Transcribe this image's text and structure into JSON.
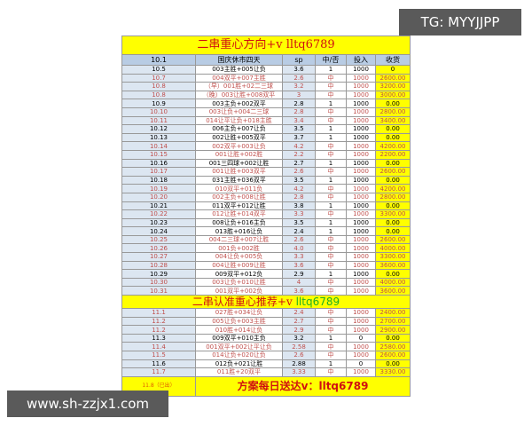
{
  "watermarks": {
    "top": "TG: MYYJJPP",
    "bottom": "www.sh-zzjx1.com"
  },
  "section1": {
    "title": "二串重心方向+v",
    "title_id": "lltq6789",
    "header": [
      "10.1",
      "国庆休市四天",
      "sp",
      "中/否",
      "投入",
      "收货"
    ],
    "rows": [
      [
        "10.5",
        "003主胜+005让负",
        "3.6",
        "1",
        "1000",
        "0",
        false
      ],
      [
        "10.7",
        "004双平+007主胜",
        "2.6",
        "中",
        "1000",
        "2600.00",
        true
      ],
      [
        "10.8",
        "（早）001胜+02二三球",
        "3.2",
        "中",
        "1000",
        "3200.00",
        true
      ],
      [
        "10.8",
        "（晚）003让胜+008双平",
        "3",
        "中",
        "1000",
        "3000.00",
        true
      ],
      [
        "10.9",
        "003主负+002双平",
        "2.8",
        "1",
        "1000",
        "0.00",
        false
      ],
      [
        "10.10",
        "003让负+004二三球",
        "2.8",
        "中",
        "1000",
        "2800.00",
        true
      ],
      [
        "10.11",
        "014让平让负+018主胜",
        "3.4",
        "中",
        "1000",
        "3400.00",
        true
      ],
      [
        "10.12",
        "006主负+007让负",
        "3.5",
        "1",
        "1000",
        "0.00",
        false
      ],
      [
        "10.13",
        "002让胜+005双平",
        "3.7",
        "1",
        "1000",
        "0.00",
        false
      ],
      [
        "10.14",
        "002双平+003让负",
        "4.2",
        "中",
        "1000",
        "4200.00",
        true
      ],
      [
        "10.15",
        "001让胜+002胜",
        "2.2",
        "中",
        "1000",
        "2200.00",
        true
      ],
      [
        "10.16",
        "001三四球+002让胜",
        "2.7",
        "1",
        "1000",
        "0.00",
        false
      ],
      [
        "10.17",
        "001让胜+003双平",
        "2.6",
        "中",
        "1000",
        "2600.00",
        true
      ],
      [
        "10.18",
        "031主胜+036双平",
        "3.5",
        "1",
        "1000",
        "0.00",
        false
      ],
      [
        "10.19",
        "010双平+011负",
        "4.2",
        "中",
        "1000",
        "4200.00",
        true
      ],
      [
        "10.20",
        "002主负+008让胜",
        "2.8",
        "中",
        "1000",
        "2800.00",
        true
      ],
      [
        "10.21",
        "011双平+012让胜",
        "3.8",
        "1",
        "1000",
        "0.00",
        false
      ],
      [
        "10.22",
        "012让胜+014双平",
        "3.3",
        "中",
        "1000",
        "3300.00",
        true
      ],
      [
        "10.23",
        "008让负+016主负",
        "3.5",
        "1",
        "1000",
        "0.00",
        false
      ],
      [
        "10.24",
        "013胜+016让负",
        "2.4",
        "1",
        "1000",
        "0.00",
        false
      ],
      [
        "10.25",
        "004二三球+007让胜",
        "2.6",
        "中",
        "1000",
        "2600.00",
        true
      ],
      [
        "10.26",
        "001负+002胜",
        "4.0",
        "中",
        "1000",
        "4000.00",
        true
      ],
      [
        "10.27",
        "004让负+005负",
        "3.3",
        "中",
        "1000",
        "3300.00",
        true
      ],
      [
        "10.28",
        "004让胜+009让胜",
        "3.6",
        "中",
        "1000",
        "3600.00",
        true
      ],
      [
        "10.29",
        "009双平+012负",
        "2.9",
        "1",
        "1000",
        "0.00",
        false
      ],
      [
        "10.30",
        "003让负+010让胜",
        "4",
        "中",
        "1000",
        "4000.00",
        true
      ],
      [
        "10.31",
        "001双平+002负",
        "3.6",
        "中",
        "1000",
        "3600.00",
        true
      ]
    ]
  },
  "section2": {
    "title": "二串认准重心推荐+v",
    "title_id": "lltq6789",
    "rows": [
      [
        "11.1",
        "027胜+034让负",
        "2.4",
        "中",
        "1000",
        "2400.00",
        true
      ],
      [
        "11.2",
        "005让负+003主胜",
        "2.7",
        "中",
        "1000",
        "2700.00",
        true
      ],
      [
        "11.2",
        "010胜+014让负",
        "2.9",
        "中",
        "1000",
        "2900.00",
        true
      ],
      [
        "11.3",
        "009双平+010主负",
        "3.2",
        "1",
        "0",
        "0.00",
        false
      ],
      [
        "11.4",
        "001双平+002让平让负",
        "2.58",
        "中",
        "1000",
        "2580.00",
        true
      ],
      [
        "11.5",
        "014让负+020让负",
        "2.6",
        "中",
        "1000",
        "2600.00",
        true
      ],
      [
        "11.6",
        "012负+021让胜",
        "2.88",
        "1",
        "0",
        "0.00",
        false
      ],
      [
        "11.7",
        "011胜+20双平",
        "3.33",
        "中",
        "1000",
        "3330.00",
        true
      ]
    ]
  },
  "footer": {
    "note": "11.8（已出）",
    "message": "方案每日送达v：lltq6789"
  }
}
